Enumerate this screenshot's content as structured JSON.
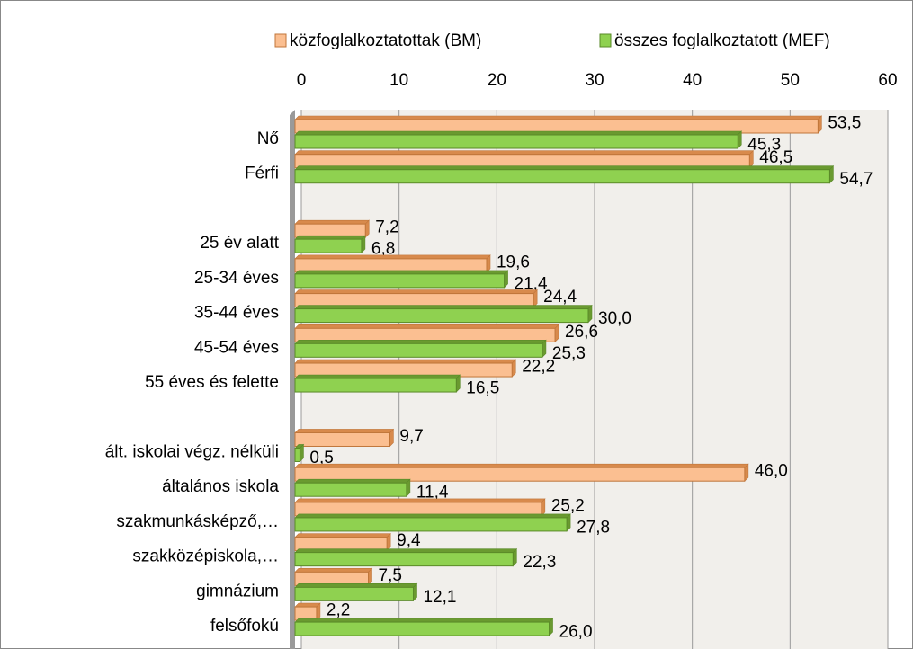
{
  "chart_data": {
    "type": "bar",
    "orientation": "horizontal",
    "categories": [
      "Nő",
      "Férfi",
      null,
      "25 év alatt",
      "25-34 éves",
      "35-44 éves",
      "45-54 éves",
      "55 éves és felette",
      null,
      "ált. iskolai végz. nélküli",
      "általános iskola",
      "szakmunkásképző,…",
      "szakközépiskola,…",
      "gimnázium",
      "felsőfokú"
    ],
    "series": [
      {
        "name": "közfoglalkoztatottak (BM)",
        "color": "#fbbf91",
        "values": [
          53.5,
          46.5,
          null,
          7.2,
          19.6,
          24.4,
          26.6,
          22.2,
          null,
          9.7,
          46.0,
          25.2,
          9.4,
          7.5,
          2.2
        ],
        "value_labels": [
          "53,5",
          "46,5",
          null,
          "7,2",
          "19,6",
          "24,4",
          "26,6",
          "22,2",
          null,
          "9,7",
          "46,0",
          "25,2",
          "9,4",
          "7,5",
          "2,2"
        ]
      },
      {
        "name": "összes foglalkoztatott (MEF)",
        "color": "#8fd150",
        "values": [
          45.3,
          54.7,
          null,
          6.8,
          21.4,
          30.0,
          25.3,
          16.5,
          null,
          0.5,
          11.4,
          27.8,
          22.3,
          12.1,
          26.0
        ],
        "value_labels": [
          "45,3",
          "54,7",
          null,
          "6,8",
          "21,4",
          "30,0",
          "25,3",
          "16,5",
          null,
          "0,5",
          "11,4",
          "27,8",
          "22,3",
          "12,1",
          "26,0"
        ]
      }
    ],
    "xlim": [
      0,
      60
    ],
    "xticks": [
      0,
      10,
      20,
      30,
      40,
      50,
      60
    ],
    "grid": true,
    "legend": "top"
  }
}
